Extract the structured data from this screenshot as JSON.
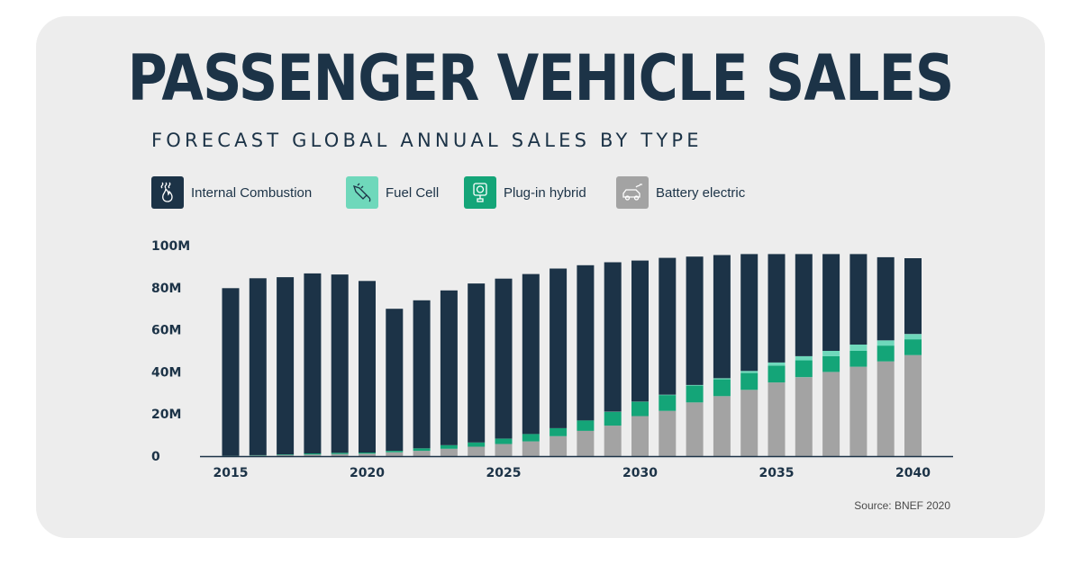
{
  "header": {
    "title": "PASSENGER VEHICLE SALES",
    "subtitle": "FORECAST GLOBAL ANNUAL SALES BY TYPE"
  },
  "legend": [
    {
      "label": "Internal Combustion",
      "color": "#1c3347",
      "icon": "flame-heat-icon"
    },
    {
      "label": "Fuel Cell",
      "color": "#6fd8bb",
      "icon": "fuel-nozzle-icon"
    },
    {
      "label": "Plug-in hybrid",
      "color": "#14a578",
      "icon": "plug-charger-icon"
    },
    {
      "label": "Battery electric",
      "color": "#a3a3a3",
      "icon": "electric-car-icon"
    }
  ],
  "source": "Source: BNEF 2020",
  "chart_data": {
    "type": "bar",
    "stacked": true,
    "title": "PASSENGER VEHICLE SALES",
    "subtitle": "FORECAST GLOBAL ANNUAL SALES BY TYPE",
    "xlabel": "",
    "ylabel": "",
    "ylim": [
      0,
      100
    ],
    "yticks": [
      0,
      20,
      40,
      60,
      80,
      100
    ],
    "ytick_labels": [
      "0",
      "20M",
      "40M",
      "60M",
      "80M",
      "100M"
    ],
    "xtick_labels": [
      "2015",
      "2020",
      "2025",
      "2030",
      "2035",
      "2040"
    ],
    "categories": [
      "2015",
      "2016",
      "2017",
      "2018",
      "2019",
      "2020",
      "2021",
      "2022",
      "2023",
      "2024",
      "2025",
      "2026",
      "2027",
      "2028",
      "2029",
      "2030",
      "2031",
      "2032",
      "2033",
      "2034",
      "2035",
      "2036",
      "2037",
      "2038",
      "2039",
      "2040"
    ],
    "legend_position": "top-left",
    "grid": false,
    "series": [
      {
        "name": "Battery electric",
        "color": "#a3a3a3",
        "values": [
          0.1,
          0.3,
          0.5,
          0.8,
          1.0,
          1.2,
          1.8,
          2.5,
          3.5,
          4.5,
          5.8,
          7.0,
          9.5,
          12.0,
          14.5,
          19.0,
          21.5,
          25.5,
          28.5,
          31.5,
          35.0,
          37.5,
          40.0,
          42.5,
          45.0,
          48.0
        ]
      },
      {
        "name": "Plug-in hybrid",
        "color": "#14a578",
        "values": [
          0.1,
          0.2,
          0.3,
          0.5,
          0.6,
          0.5,
          0.7,
          1.2,
          1.7,
          2.0,
          2.5,
          3.5,
          3.8,
          5.0,
          6.5,
          6.8,
          7.5,
          8.0,
          8.0,
          8.0,
          8.0,
          8.0,
          7.5,
          7.5,
          7.5,
          7.5
        ]
      },
      {
        "name": "Fuel Cell",
        "color": "#6fd8bb",
        "values": [
          0,
          0,
          0,
          0,
          0,
          0,
          0,
          0,
          0,
          0,
          0,
          0,
          0,
          0,
          0.1,
          0.1,
          0.2,
          0.3,
          0.5,
          1.0,
          1.5,
          2.0,
          2.5,
          3.0,
          2.5,
          2.5
        ]
      },
      {
        "name": "Internal Combustion",
        "color": "#1c3347",
        "values": [
          79.6,
          84.0,
          84.2,
          85.5,
          84.7,
          81.5,
          67.5,
          70.3,
          73.5,
          75.5,
          76.0,
          76.0,
          75.8,
          73.7,
          71.0,
          67.0,
          65.0,
          61.0,
          58.5,
          55.5,
          51.5,
          48.5,
          46.0,
          43.0,
          39.5,
          36.0
        ]
      }
    ]
  }
}
